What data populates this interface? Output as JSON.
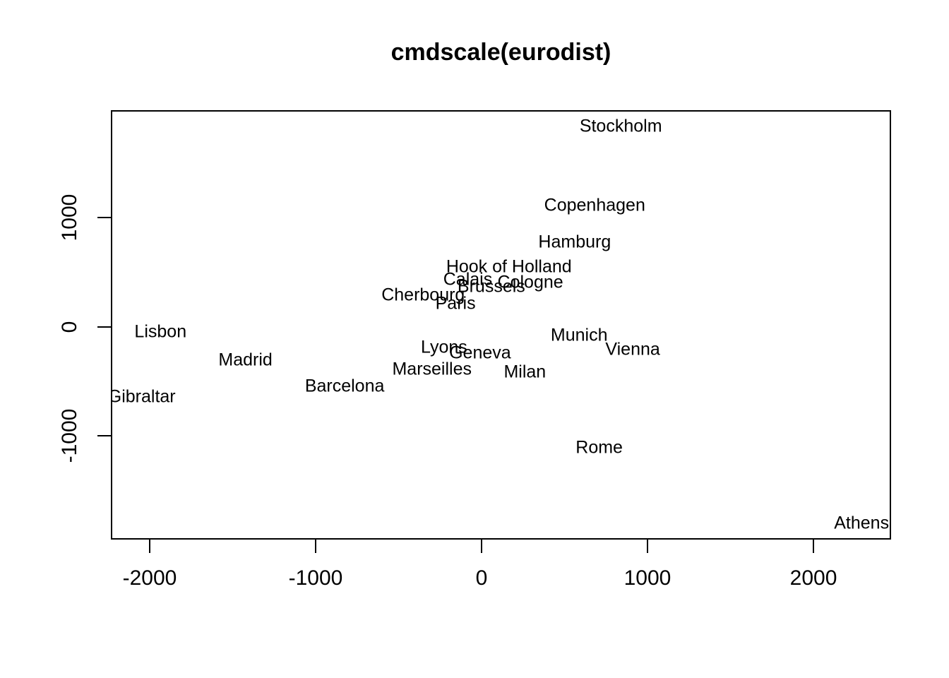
{
  "colors": {
    "background": "#ffffff",
    "text": "#000000",
    "axis": "#000000"
  },
  "chart_data": {
    "type": "scatter",
    "title": "cmdscale(eurodist)",
    "xlabel": "",
    "ylabel": "",
    "grid": false,
    "legend": false,
    "marker_style": "text-labels-only",
    "xlim": [
      -2234,
      2468
    ],
    "ylim": [
      -1951,
      1986
    ],
    "x_ticks": [
      -2000,
      -1000,
      0,
      1000,
      2000
    ],
    "y_ticks": [
      -1000,
      0,
      1000
    ],
    "points": [
      {
        "label": "Athens",
        "x": 2290,
        "y": -1799
      },
      {
        "label": "Barcelona",
        "x": -825,
        "y": -547
      },
      {
        "label": "Brussels",
        "x": 59,
        "y": 367
      },
      {
        "label": "Calais",
        "x": -83,
        "y": 430
      },
      {
        "label": "Cherbourg",
        "x": -352,
        "y": 291
      },
      {
        "label": "Cologne",
        "x": 294,
        "y": 405
      },
      {
        "label": "Copenhagen",
        "x": 682,
        "y": 1109
      },
      {
        "label": "Geneva",
        "x": -9,
        "y": -240
      },
      {
        "label": "Gibraltar",
        "x": -2048,
        "y": -642
      },
      {
        "label": "Hamburg",
        "x": 561,
        "y": 773
      },
      {
        "label": "Hook of Holland",
        "x": 165,
        "y": 549
      },
      {
        "label": "Lisbon",
        "x": -1935,
        "y": -49
      },
      {
        "label": "Lyons",
        "x": -226,
        "y": -187
      },
      {
        "label": "Madrid",
        "x": -1423,
        "y": -306
      },
      {
        "label": "Marseilles",
        "x": -299,
        "y": -389
      },
      {
        "label": "Milan",
        "x": 261,
        "y": -417
      },
      {
        "label": "Munich",
        "x": 588,
        "y": -81
      },
      {
        "label": "Paris",
        "x": -157,
        "y": 211
      },
      {
        "label": "Rome",
        "x": 709,
        "y": -1109
      },
      {
        "label": "Stockholm",
        "x": 839,
        "y": 1837
      },
      {
        "label": "Vienna",
        "x": 911,
        "y": -206
      }
    ]
  }
}
